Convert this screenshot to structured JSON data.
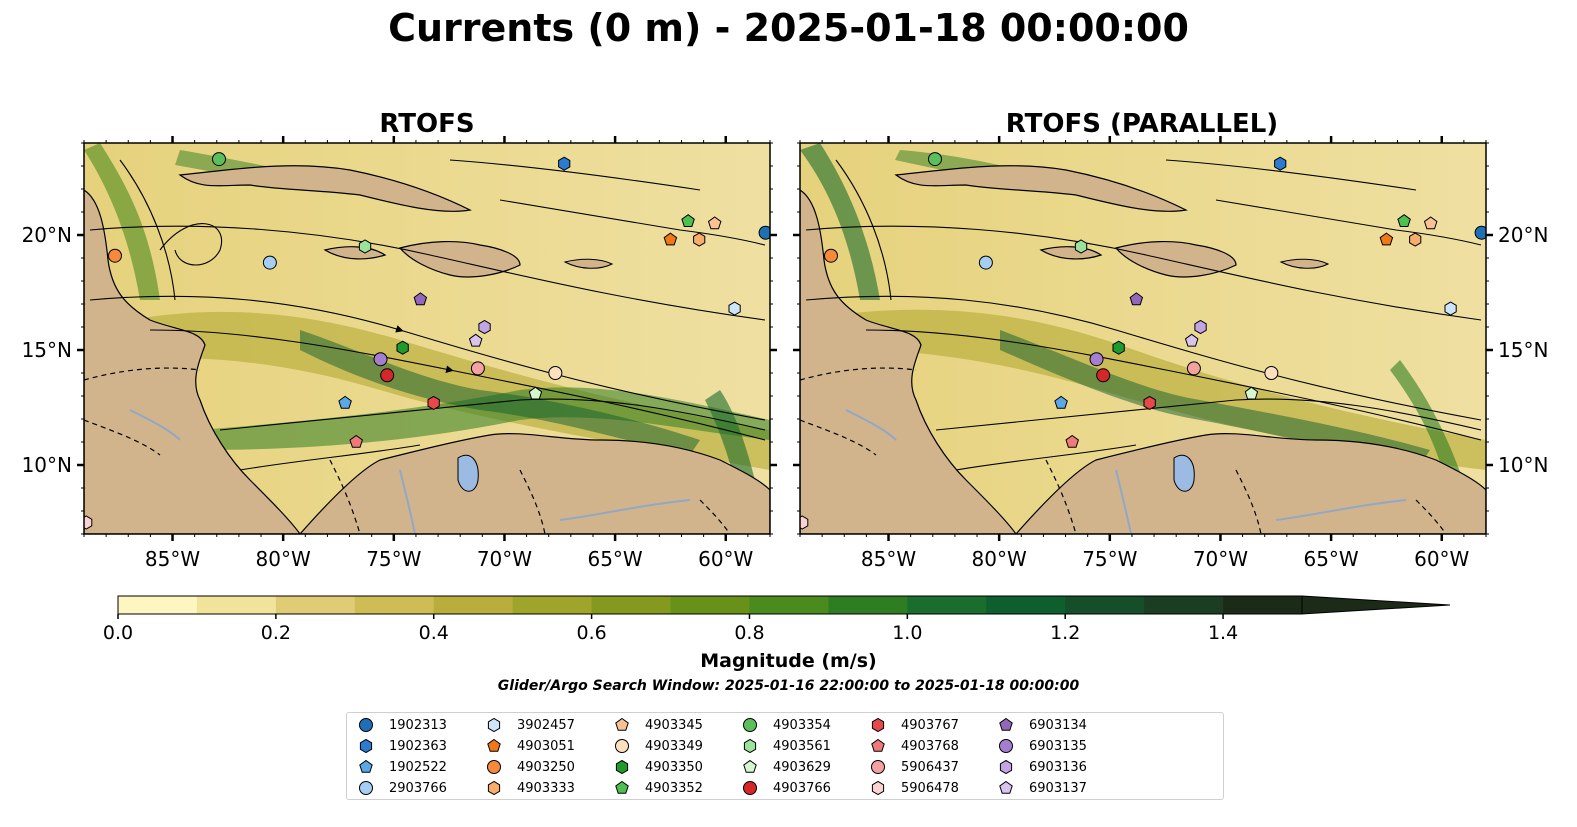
{
  "title": "Currents (0 m) - 2025-01-18 00:00:00",
  "panels": [
    {
      "title": "RTOFS"
    },
    {
      "title": "RTOFS (PARALLEL)"
    }
  ],
  "colorbar": {
    "label": "Magnitude (m/s)",
    "ticks": [
      "0.0",
      "0.2",
      "0.4",
      "0.6",
      "0.8",
      "1.0",
      "1.2",
      "1.4"
    ],
    "colors": [
      "#fdf6c0",
      "#f2e39a",
      "#e0cc74",
      "#cfbc55",
      "#b9ad3b",
      "#9ea52a",
      "#84991e",
      "#679119",
      "#4b8a1c",
      "#2f7d22",
      "#1a6d2c",
      "#0f5e2e",
      "#154e28",
      "#1b3d22",
      "#1c2b18"
    ]
  },
  "search_window": "Glider/Argo Search Window: 2025-01-16 22:00:00 to 2025-01-18 00:00:00",
  "chart_data": {
    "type": "map",
    "xlim": [
      -89,
      -58
    ],
    "ylim": [
      7,
      24
    ],
    "x_ticks": [
      "85°W",
      "80°W",
      "75°W",
      "70°W",
      "65°W",
      "60°W"
    ],
    "y_ticks": [
      "20°N",
      "15°N",
      "10°N"
    ],
    "platforms": [
      {
        "id": "1902313",
        "shape": "circle",
        "color": "#1f6fb5",
        "lon": -58.2,
        "lat": 20.1
      },
      {
        "id": "1902363",
        "shape": "hexagon",
        "color": "#2b7bd0",
        "lon": -67.3,
        "lat": 23.1
      },
      {
        "id": "1902522",
        "shape": "pentagon",
        "color": "#5aa8e8",
        "lon": -77.2,
        "lat": 12.7
      },
      {
        "id": "2903766",
        "shape": "circle",
        "color": "#a6cdf2",
        "lon": -80.6,
        "lat": 18.8
      },
      {
        "id": "3902457",
        "shape": "hexagon",
        "color": "#cde6fb",
        "lon": -59.6,
        "lat": 16.8
      },
      {
        "id": "4903051",
        "shape": "pentagon",
        "color": "#f07817",
        "lon": -62.5,
        "lat": 19.8
      },
      {
        "id": "4903250",
        "shape": "circle",
        "color": "#f6893a",
        "lon": -87.6,
        "lat": 19.1
      },
      {
        "id": "4903333",
        "shape": "hexagon",
        "color": "#f8ad6a",
        "lon": -61.2,
        "lat": 19.8
      },
      {
        "id": "4903345",
        "shape": "pentagon",
        "color": "#fac292",
        "lon": -60.5,
        "lat": 20.5
      },
      {
        "id": "4903349",
        "shape": "circle",
        "color": "#fde0c0",
        "lon": -67.7,
        "lat": 14.0
      },
      {
        "id": "4903350",
        "shape": "hexagon",
        "color": "#1f9a2c",
        "lon": -74.6,
        "lat": 15.1
      },
      {
        "id": "4903352",
        "shape": "pentagon",
        "color": "#4dc04f",
        "lon": -61.7,
        "lat": 20.6
      },
      {
        "id": "4903354",
        "shape": "circle",
        "color": "#5bbf5b",
        "lon": -82.9,
        "lat": 23.3
      },
      {
        "id": "4903561",
        "shape": "hexagon",
        "color": "#9be39a",
        "lon": -76.3,
        "lat": 19.5
      },
      {
        "id": "4903629",
        "shape": "pentagon",
        "color": "#d4f7d0",
        "lon": -68.6,
        "lat": 13.1
      },
      {
        "id": "4903766",
        "shape": "circle",
        "color": "#d62728",
        "lon": -75.3,
        "lat": 13.9
      },
      {
        "id": "4903767",
        "shape": "hexagon",
        "color": "#e8484a",
        "lon": -73.2,
        "lat": 12.7
      },
      {
        "id": "4903768",
        "shape": "pentagon",
        "color": "#f07a7a",
        "lon": -76.7,
        "lat": 11.0
      },
      {
        "id": "5906437",
        "shape": "circle",
        "color": "#f4a1a1",
        "lon": -71.2,
        "lat": 14.2
      },
      {
        "id": "5906478",
        "shape": "hexagon",
        "color": "#fad2d2",
        "lon": -88.9,
        "lat": 7.5
      },
      {
        "id": "6903134",
        "shape": "pentagon",
        "color": "#9467bd",
        "lon": -73.8,
        "lat": 17.2
      },
      {
        "id": "6903135",
        "shape": "circle",
        "color": "#a57ed1",
        "lon": -75.6,
        "lat": 14.6
      },
      {
        "id": "6903136",
        "shape": "hexagon",
        "color": "#c3a5e5",
        "lon": -70.9,
        "lat": 16.0
      },
      {
        "id": "6903137",
        "shape": "pentagon",
        "color": "#d9c4f0",
        "lon": -71.3,
        "lat": 15.4
      }
    ]
  }
}
